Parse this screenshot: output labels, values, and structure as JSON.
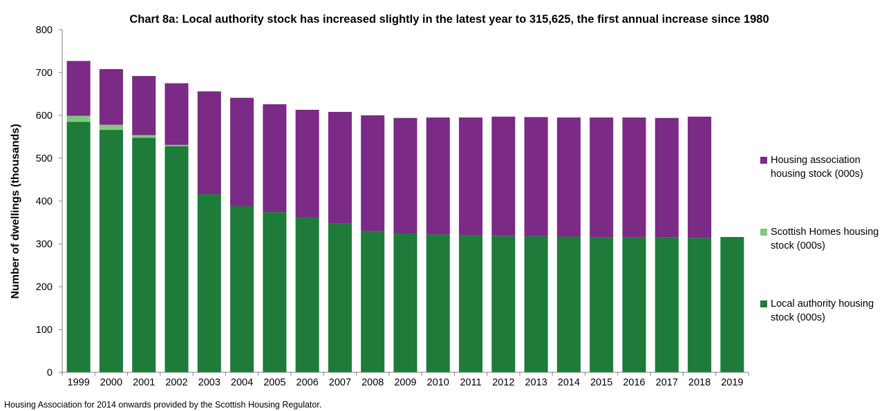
{
  "chart_data": {
    "type": "bar",
    "stacked": true,
    "title": "Chart 8a: Local authority stock has increased slightly in the latest year to 315,625, the first annual increase since 1980",
    "xlabel": "",
    "ylabel": "Number of dwellings (thousands)",
    "ylim": [
      0,
      800
    ],
    "yticks": [
      0,
      100,
      200,
      300,
      400,
      500,
      600,
      700,
      800
    ],
    "grid": false,
    "legend_position": "right",
    "categories": [
      "1999",
      "2000",
      "2001",
      "2002",
      "2003",
      "2004",
      "2005",
      "2006",
      "2007",
      "2008",
      "2009",
      "2010",
      "2011",
      "2012",
      "2013",
      "2014",
      "2015",
      "2016",
      "2017",
      "2018",
      "2019"
    ],
    "series": [
      {
        "name": "Local authority housing stock (000s)",
        "color": "#1e7b3a",
        "values": [
          585,
          566,
          548,
          528,
          416,
          388,
          374,
          362,
          347,
          330,
          325,
          322,
          320,
          319,
          318,
          317,
          316,
          316,
          315,
          314,
          316
        ]
      },
      {
        "name": "Scottish Homes housing stock (000s)",
        "color": "#7fc97f",
        "values": [
          14,
          12,
          6,
          3,
          0,
          0,
          0,
          0,
          0,
          0,
          0,
          0,
          0,
          0,
          0,
          0,
          0,
          0,
          0,
          0,
          0
        ]
      },
      {
        "name": "Housing association housing stock (000s)",
        "color": "#7b2a85",
        "values": [
          128,
          130,
          138,
          144,
          240,
          253,
          252,
          251,
          261,
          270,
          269,
          273,
          275,
          278,
          278,
          278,
          279,
          279,
          279,
          283,
          0
        ]
      }
    ]
  },
  "legend": [
    {
      "label": "Housing association housing stock (000s)",
      "color": "#7b2a85"
    },
    {
      "label": "Scottish Homes housing stock (000s)",
      "color": "#7fc97f"
    },
    {
      "label": "Local authority housing stock (000s)",
      "color": "#1e7b3a"
    }
  ],
  "footnote": "Housing Association for 2014 onwards provided by the Scottish Housing Regulator."
}
